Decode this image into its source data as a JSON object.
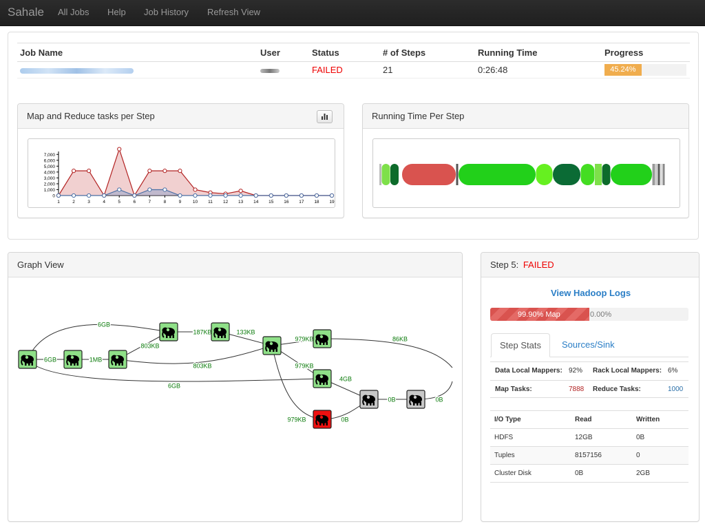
{
  "nav": {
    "brand": "Sahale",
    "items": [
      "All Jobs",
      "Help",
      "Job History",
      "Refresh View"
    ]
  },
  "jobs_table": {
    "headers": [
      "Job Name",
      "User",
      "Status",
      "# of Steps",
      "Running Time",
      "Progress"
    ],
    "row": {
      "status": "FAILED",
      "steps": "21",
      "running_time": "0:26:48",
      "progress_label": "45.24%",
      "progress": 0.4524
    }
  },
  "map_reduce_panel": {
    "title": "Map and Reduce tasks per Step",
    "icon": "bar-chart-icon"
  },
  "running_time_panel": {
    "title": "Running Time Per Step"
  },
  "graph_panel": {
    "title": "Graph View"
  },
  "step_panel": {
    "title_prefix": "Step 5:",
    "status": "FAILED",
    "logs_link": "View Hadoop Logs",
    "map_progress_label": "99.90% Map",
    "map_progress": 0.999,
    "reduce_progress_label": "0.00%",
    "tabs": [
      "Step Stats",
      "Sources/Sink"
    ],
    "stats": {
      "data_local_label": "Data Local Mappers:",
      "data_local_value": "92%",
      "rack_local_label": "Rack Local Mappers:",
      "rack_local_value": "6%",
      "map_tasks_label": "Map Tasks:",
      "map_tasks_value": "7888",
      "reduce_tasks_label": "Reduce Tasks:",
      "reduce_tasks_value": "1000"
    },
    "io_table": {
      "headers": [
        "I/O Type",
        "Read",
        "Written"
      ],
      "rows": [
        [
          "HDFS",
          "12GB",
          "0B"
        ],
        [
          "Tuples",
          "8157156",
          "0"
        ],
        [
          "Cluster Disk",
          "0B",
          "2GB"
        ]
      ]
    }
  },
  "chart_data": {
    "type": "area",
    "title": "Map and Reduce tasks per Step",
    "categories": [
      "1",
      "2",
      "3",
      "4",
      "5",
      "6",
      "7",
      "8",
      "9",
      "10",
      "11",
      "12",
      "13",
      "14",
      "15",
      "16",
      "17",
      "18",
      "19"
    ],
    "y_ticks": [
      "0",
      "1,000",
      "2,000",
      "3,000",
      "4,000",
      "5,000",
      "6,000",
      "7,000"
    ],
    "ylim": [
      0,
      7500
    ],
    "series": [
      {
        "values": [
          0,
          4200,
          4200,
          0,
          7900,
          0,
          4200,
          4200,
          4200,
          1000,
          500,
          300,
          800,
          0,
          0,
          0,
          0,
          0,
          0
        ],
        "color": "#b22222"
      },
      {
        "values": [
          0,
          0,
          0,
          0,
          1000,
          0,
          1000,
          1000,
          0,
          0,
          0,
          0,
          0,
          0,
          0,
          0,
          0,
          0,
          0
        ],
        "color": "#4a6fa5"
      }
    ]
  },
  "running_time_segments": [
    {
      "w": 3,
      "c": "#bbbbbb"
    },
    {
      "w": 12,
      "c": "#7ee04a"
    },
    {
      "w": 12,
      "c": "#0d6b2b"
    },
    {
      "w": 4,
      "c": "#ffffff"
    },
    {
      "w": 78,
      "c": "#d9534f"
    },
    {
      "w": 3,
      "c": "#555555"
    },
    {
      "w": 112,
      "c": "#22d01a"
    },
    {
      "w": 24,
      "c": "#66f020"
    },
    {
      "w": 40,
      "c": "#0b6b35"
    },
    {
      "w": 20,
      "c": "#44dd22"
    },
    {
      "w": 10,
      "c": "#7ee04a"
    },
    {
      "w": 12,
      "c": "#0d6b2b"
    },
    {
      "w": 60,
      "c": "#22d01a"
    },
    {
      "w": 4,
      "c": "#999999"
    },
    {
      "w": 3,
      "c": "#cccccc"
    },
    {
      "w": 3,
      "c": "#555555"
    },
    {
      "w": 3,
      "c": "#dddddd"
    },
    {
      "w": 3,
      "c": "#888888"
    }
  ],
  "graph": {
    "edge_labels": [
      "6GB",
      "6GB",
      "1MB",
      "803KB",
      "187KB",
      "133KB",
      "803KB",
      "979KB",
      "86KB",
      "979KB",
      "4GB",
      "6GB",
      "0B",
      "0B",
      "979KB",
      "0B"
    ]
  }
}
